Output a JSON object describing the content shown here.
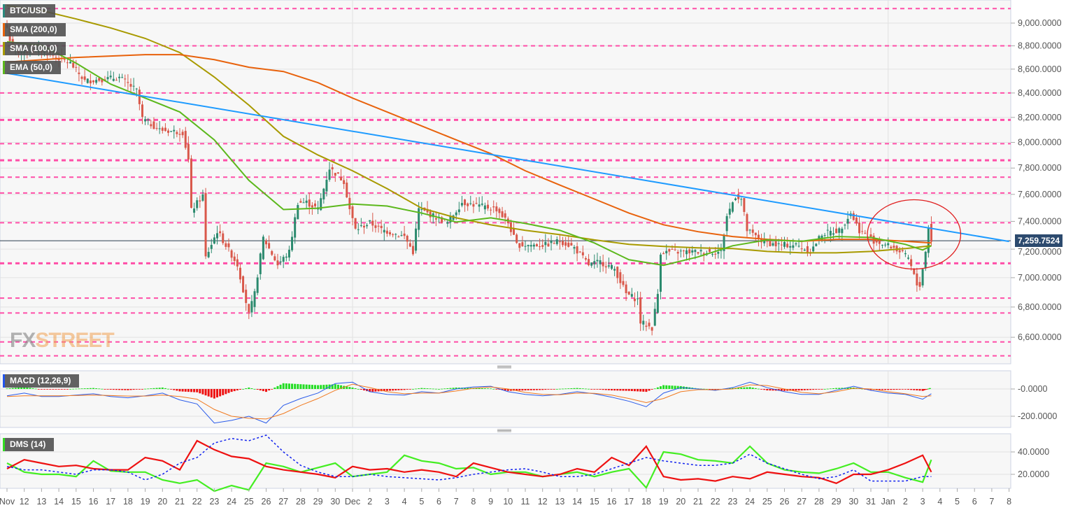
{
  "legend": {
    "symbol": {
      "label": "BTC/USD",
      "color": "#2b8a7e"
    },
    "sma200": {
      "label": "SMA (200,0)",
      "color": "#e8620c"
    },
    "sma100": {
      "label": "SMA (100,0)",
      "color": "#a89a00"
    },
    "ema50": {
      "label": "EMA (50,0)",
      "color": "#5cb81c"
    },
    "macd": {
      "label": "MACD (12,26,9)",
      "color": "#2255ee"
    },
    "dms": {
      "label": "DMS (14)",
      "color": "#33dd22"
    }
  },
  "logo": {
    "part1": "FX",
    "part2": "STREET"
  },
  "current_price": "7,259.7524",
  "chart_data": [
    {
      "type": "candlestick",
      "title": "BTC/USD",
      "interval": "4h",
      "y_scale": "log",
      "ylim": [
        6430,
        9250
      ],
      "y_ticks": [
        "9,000.0000",
        "8,800.0000",
        "8,600.0000",
        "8,400.0000",
        "8,200.0000",
        "8,000.0000",
        "7,800.0000",
        "7,600.0000",
        "7,400.0000",
        "7,200.0000",
        "7,000.0000",
        "6,800.0000",
        "6,600.0000"
      ],
      "y_tick_values": [
        9000,
        8800,
        8600,
        8400,
        8200,
        8000,
        7800,
        7600,
        7400,
        7200,
        7000,
        6800,
        6600
      ],
      "current_price": 7259.7524,
      "colors": {
        "up": "#2b8a6e",
        "down": "#d9584a",
        "level": "#ff4fa8",
        "trendline": "#1e9bff",
        "annotation": "#e02020"
      },
      "close_path": [
        [
          "2019-11-11T00:00",
          8960
        ],
        [
          "2019-11-11T08:00",
          8750
        ],
        [
          "2019-11-13T00:00",
          8760
        ],
        [
          "2019-11-14T16:00",
          8650
        ],
        [
          "2019-11-15T12:00",
          8500
        ],
        [
          "2019-11-17T12:00",
          8530
        ],
        [
          "2019-11-18T12:00",
          8420
        ],
        [
          "2019-11-18T20:00",
          8190
        ],
        [
          "2019-11-19T20:00",
          8100
        ],
        [
          "2019-11-21T04:00",
          8080
        ],
        [
          "2019-11-21T12:00",
          7860
        ],
        [
          "2019-11-21T16:00",
          7480
        ],
        [
          "2019-11-22T08:00",
          7590
        ],
        [
          "2019-11-22T12:00",
          7140
        ],
        [
          "2019-11-23T04:00",
          7330
        ],
        [
          "2019-11-24T08:00",
          7090
        ],
        [
          "2019-11-25T00:00",
          6750
        ],
        [
          "2019-11-25T08:00",
          6890
        ],
        [
          "2019-11-25T20:00",
          7280
        ],
        [
          "2019-11-26T16:00",
          7090
        ],
        [
          "2019-11-27T08:00",
          7180
        ],
        [
          "2019-11-27T20:00",
          7540
        ],
        [
          "2019-11-28T08:00",
          7540
        ],
        [
          "2019-11-29T00:00",
          7490
        ],
        [
          "2019-11-29T16:00",
          7800
        ],
        [
          "2019-11-30T12:00",
          7700
        ],
        [
          "2019-11-30T20:00",
          7490
        ],
        [
          "2019-12-01T04:00",
          7340
        ],
        [
          "2019-12-02T00:00",
          7390
        ],
        [
          "2019-12-02T16:00",
          7340
        ],
        [
          "2019-12-04T00:00",
          7290
        ],
        [
          "2019-12-04T12:00",
          7180
        ],
        [
          "2019-12-04T20:00",
          7490
        ],
        [
          "2019-12-05T16:00",
          7440
        ],
        [
          "2019-12-06T12:00",
          7390
        ],
        [
          "2019-12-07T08:00",
          7540
        ],
        [
          "2019-12-08T12:00",
          7510
        ],
        [
          "2019-12-09T08:00",
          7490
        ],
        [
          "2019-12-10T00:00",
          7390
        ],
        [
          "2019-12-10T12:00",
          7230
        ],
        [
          "2019-12-12T04:00",
          7230
        ],
        [
          "2019-12-13T00:00",
          7260
        ],
        [
          "2019-12-13T20:00",
          7210
        ],
        [
          "2019-12-14T16:00",
          7090
        ],
        [
          "2019-12-15T08:00",
          7110
        ],
        [
          "2019-12-16T04:00",
          7060
        ],
        [
          "2019-12-16T20:00",
          6890
        ],
        [
          "2019-12-17T12:00",
          6850
        ],
        [
          "2019-12-17T16:00",
          6700
        ],
        [
          "2019-12-18T08:00",
          6660
        ],
        [
          "2019-12-18T16:00",
          6890
        ],
        [
          "2019-12-18T20:00",
          7180
        ],
        [
          "2019-12-19T12:00",
          7180
        ],
        [
          "2019-12-20T16:00",
          7180
        ],
        [
          "2019-12-22T08:00",
          7180
        ],
        [
          "2019-12-22T16:00",
          7440
        ],
        [
          "2019-12-23T04:00",
          7590
        ],
        [
          "2019-12-23T12:00",
          7565
        ],
        [
          "2019-12-23T20:00",
          7335
        ],
        [
          "2019-12-24T16:00",
          7260
        ],
        [
          "2019-12-25T12:00",
          7230
        ],
        [
          "2019-12-26T16:00",
          7230
        ],
        [
          "2019-12-27T12:00",
          7180
        ],
        [
          "2019-12-28T04:00",
          7310
        ],
        [
          "2019-12-29T04:00",
          7335
        ],
        [
          "2019-12-29T20:00",
          7460
        ],
        [
          "2019-12-30T08:00",
          7335
        ],
        [
          "2019-12-31T04:00",
          7260
        ],
        [
          "2020-01-01T08:00",
          7210
        ],
        [
          "2020-01-02T04:00",
          7135
        ],
        [
          "2020-01-02T16:00",
          6950
        ],
        [
          "2020-01-02T20:00",
          6950
        ],
        [
          "2020-01-03T04:00",
          7180
        ],
        [
          "2020-01-03T08:00",
          7360
        ],
        [
          "2020-01-03T12:00",
          7260
        ]
      ],
      "moving_averages": {
        "sma200": [
          [
            "2019-11-11",
            8660
          ],
          [
            "2019-11-15",
            8700
          ],
          [
            "2019-11-19",
            8724
          ],
          [
            "2019-11-21",
            8724
          ],
          [
            "2019-11-23",
            8681
          ],
          [
            "2019-11-25",
            8616
          ],
          [
            "2019-11-27",
            8580
          ],
          [
            "2019-11-29",
            8486
          ],
          [
            "2019-12-01",
            8358
          ],
          [
            "2019-12-03",
            8244
          ],
          [
            "2019-12-05",
            8131
          ],
          [
            "2019-12-07",
            8020
          ],
          [
            "2019-12-09",
            7912
          ],
          [
            "2019-12-11",
            7779
          ],
          [
            "2019-12-13",
            7670
          ],
          [
            "2019-12-15",
            7565
          ],
          [
            "2019-12-17",
            7461
          ],
          [
            "2019-12-19",
            7375
          ],
          [
            "2019-12-21",
            7325
          ],
          [
            "2019-12-23",
            7290
          ],
          [
            "2019-12-25",
            7270
          ],
          [
            "2019-12-27",
            7256
          ],
          [
            "2019-12-29",
            7270
          ],
          [
            "2019-12-31",
            7270
          ],
          [
            "2020-01-02",
            7256
          ],
          [
            "2020-01-03T12:00",
            7244
          ]
        ],
        "sma100": [
          [
            "2019-11-11",
            9157
          ],
          [
            "2019-11-13",
            9112
          ],
          [
            "2019-11-15",
            9037
          ],
          [
            "2019-11-17",
            8957
          ],
          [
            "2019-11-19",
            8865
          ],
          [
            "2019-11-21",
            8742
          ],
          [
            "2019-11-23",
            8533
          ],
          [
            "2019-11-25",
            8300
          ],
          [
            "2019-11-27",
            8048
          ],
          [
            "2019-11-29",
            7901
          ],
          [
            "2019-12-01",
            7779
          ],
          [
            "2019-12-03",
            7643
          ],
          [
            "2019-12-05",
            7497
          ],
          [
            "2019-12-07",
            7426
          ],
          [
            "2019-12-09",
            7375
          ],
          [
            "2019-12-11",
            7335
          ],
          [
            "2019-12-13",
            7304
          ],
          [
            "2019-12-15",
            7266
          ],
          [
            "2019-12-17",
            7234
          ],
          [
            "2019-12-19",
            7219
          ],
          [
            "2019-12-21",
            7209
          ],
          [
            "2019-12-23",
            7204
          ],
          [
            "2019-12-25",
            7184
          ],
          [
            "2019-12-27",
            7174
          ],
          [
            "2019-12-29",
            7174
          ],
          [
            "2019-12-31",
            7184
          ],
          [
            "2020-01-02",
            7204
          ],
          [
            "2020-01-03T12:00",
            7224
          ]
        ],
        "ema50": [
          [
            "2019-11-11",
            8835
          ],
          [
            "2019-11-13",
            8804
          ],
          [
            "2019-11-15",
            8651
          ],
          [
            "2019-11-17",
            8474
          ],
          [
            "2019-11-19",
            8358
          ],
          [
            "2019-11-21",
            8244
          ],
          [
            "2019-11-23",
            8020
          ],
          [
            "2019-11-25",
            7706
          ],
          [
            "2019-11-27",
            7487
          ],
          [
            "2019-11-29",
            7497
          ],
          [
            "2019-12-01",
            7528
          ],
          [
            "2019-12-03",
            7513
          ],
          [
            "2019-12-05",
            7461
          ],
          [
            "2019-12-07",
            7395
          ],
          [
            "2019-12-09",
            7426
          ],
          [
            "2019-12-11",
            7385
          ],
          [
            "2019-12-13",
            7335
          ],
          [
            "2019-12-15",
            7244
          ],
          [
            "2019-12-17",
            7125
          ],
          [
            "2019-12-19",
            7086
          ],
          [
            "2019-12-21",
            7145
          ],
          [
            "2019-12-23",
            7224
          ],
          [
            "2019-12-25",
            7266
          ],
          [
            "2019-12-27",
            7256
          ],
          [
            "2019-12-29",
            7290
          ],
          [
            "2019-12-31",
            7284
          ],
          [
            "2020-01-02",
            7234
          ],
          [
            "2020-01-03",
            7194
          ],
          [
            "2020-01-03T12:00",
            7224
          ]
        ]
      },
      "horizontal_levels": [
        9130,
        8800,
        8400,
        8180,
        7990,
        7860,
        7730,
        7610,
        7390,
        7100,
        6860,
        6760,
        6570,
        6480
      ],
      "trendline": [
        [
          "2019-11-11",
          8565
        ],
        [
          "2020-01-08",
          7255
        ]
      ],
      "annotation_ellipse": {
        "center": [
          "2020-01-02T12:00",
          7330
        ],
        "half_width_days": 2.7,
        "price_range": [
          7060,
          7560
        ]
      }
    },
    {
      "type": "line",
      "title": "MACD (12,26,9)",
      "y_ticks": [
        "-0.0000",
        "-200.0000"
      ],
      "y_tick_values": [
        0,
        -200
      ],
      "series": [
        {
          "key": "macd",
          "color": "#2a5bea",
          "values": [
            -50,
            -30,
            -55,
            -55,
            -45,
            -35,
            -55,
            -65,
            -50,
            -30,
            -80,
            -110,
            -250,
            -230,
            -200,
            -250,
            -120,
            -70,
            -30,
            40,
            50,
            -20,
            -40,
            -45,
            -20,
            -30,
            0,
            15,
            20,
            -20,
            -40,
            -50,
            -40,
            -20,
            -35,
            -60,
            -90,
            -130,
            -30,
            10,
            0,
            -10,
            10,
            50,
            10,
            -20,
            -40,
            -40,
            -10,
            20,
            -10,
            -30,
            -40,
            -75,
            -35
          ]
        },
        {
          "key": "signal",
          "color": "#f07a20",
          "values": [
            -55,
            -50,
            -50,
            -50,
            -48,
            -45,
            -48,
            -52,
            -52,
            -45,
            -55,
            -75,
            -150,
            -200,
            -215,
            -220,
            -180,
            -120,
            -70,
            -10,
            35,
            10,
            -20,
            -35,
            -30,
            -30,
            -15,
            5,
            15,
            0,
            -25,
            -40,
            -42,
            -30,
            -32,
            -45,
            -70,
            -100,
            -70,
            -20,
            -5,
            -5,
            0,
            30,
            25,
            0,
            -25,
            -35,
            -20,
            5,
            0,
            -20,
            -35,
            -55,
            -50
          ]
        }
      ],
      "histogram_colors": {
        "positive": "#22dd22",
        "negative": "#ee1111"
      }
    },
    {
      "type": "line",
      "title": "DMS (14)",
      "y_ticks": [
        "40.0000",
        "20.0000"
      ],
      "y_tick_values": [
        40,
        20
      ],
      "series": [
        {
          "key": "plus_di",
          "color": "#44ee22",
          "values": [
            30,
            22,
            20,
            20,
            18,
            32,
            23,
            22,
            22,
            15,
            12,
            15,
            5,
            10,
            6,
            30,
            27,
            22,
            26,
            30,
            18,
            20,
            22,
            37,
            32,
            30,
            25,
            26,
            20,
            22,
            22,
            18,
            20,
            22,
            18,
            22,
            25,
            8,
            40,
            38,
            33,
            32,
            30,
            45,
            30,
            24,
            22,
            21,
            25,
            30,
            22,
            22,
            17,
            13,
            33
          ]
        },
        {
          "key": "minus_di",
          "color": "#ee1111",
          "values": [
            25,
            33,
            30,
            27,
            28,
            25,
            24,
            24,
            35,
            32,
            24,
            50,
            42,
            36,
            34,
            27,
            24,
            22,
            20,
            17,
            27,
            24,
            25,
            22,
            24,
            22,
            18,
            30,
            26,
            22,
            20,
            18,
            20,
            25,
            22,
            35,
            28,
            45,
            18,
            15,
            16,
            14,
            18,
            16,
            22,
            20,
            18,
            17,
            12,
            20,
            20,
            24,
            30,
            37,
            22
          ]
        },
        {
          "key": "adx",
          "color": "#1122ee",
          "values": [
            27,
            24,
            24,
            22,
            20,
            24,
            24,
            22,
            15,
            20,
            30,
            35,
            48,
            52,
            50,
            55,
            40,
            28,
            22,
            18,
            18,
            20,
            18,
            17,
            16,
            15,
            17,
            20,
            22,
            24,
            25,
            22,
            18,
            18,
            20,
            25,
            30,
            35,
            32,
            30,
            28,
            28,
            30,
            38,
            30,
            25,
            20,
            16,
            18,
            24,
            14,
            14,
            14,
            18,
            18
          ]
        }
      ]
    }
  ],
  "indicator_dates_start": "2019-11-11",
  "indicator_last_date": "2020-01-03T12:00",
  "x_axis": {
    "labels": [
      "Nov",
      "12",
      "13",
      "14",
      "15",
      "16",
      "17",
      "18",
      "19",
      "20",
      "21",
      "22",
      "23",
      "24",
      "25",
      "26",
      "27",
      "28",
      "29",
      "30",
      "Dec",
      "2",
      "3",
      "4",
      "5",
      "6",
      "7",
      "8",
      "9",
      "10",
      "11",
      "12",
      "13",
      "14",
      "15",
      "16",
      "17",
      "18",
      "19",
      "20",
      "21",
      "22",
      "23",
      "24",
      "25",
      "26",
      "27",
      "28",
      "29",
      "30",
      "31",
      "Jan",
      "2",
      "3",
      "4",
      "5",
      "6",
      "7",
      "8"
    ]
  }
}
